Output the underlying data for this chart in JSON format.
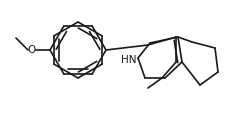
{
  "background_color": "#ffffff",
  "line_color": "#1a1a1a",
  "line_width": 1.2,
  "figsize": [
    2.46,
    1.21
  ],
  "dpi": 100,
  "font_size": 7.5,
  "o_label": "O",
  "hn_label": "HN"
}
